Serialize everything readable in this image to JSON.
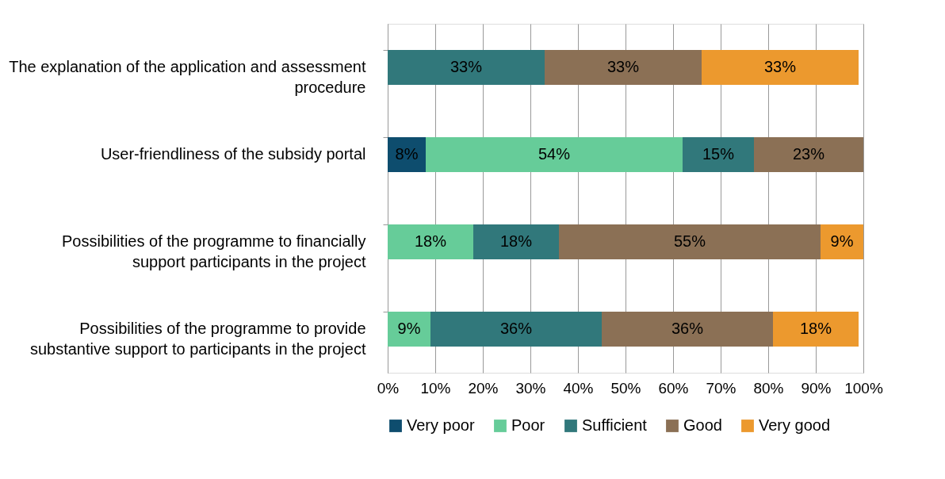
{
  "chart_data": {
    "type": "bar",
    "orientation": "horizontal",
    "stacked": true,
    "categories": [
      "The explanation of the application and assessment procedure",
      "User-friendliness of the subsidy portal",
      "Possibilities of the programme to financially support participants in the project",
      "Possibilities of the programme to provide substantive support to participants in the project"
    ],
    "series": [
      {
        "name": "Very poor",
        "color": "#0e4d6e",
        "values": [
          null,
          8,
          null,
          null
        ],
        "value_labels": [
          null,
          "8%",
          null,
          null
        ]
      },
      {
        "name": "Poor",
        "color": "#66cc99",
        "values": [
          null,
          54,
          18,
          9
        ],
        "value_labels": [
          null,
          "54%",
          "18%",
          "9%"
        ]
      },
      {
        "name": "Sufficient",
        "color": "#31787b",
        "values": [
          33,
          15,
          18,
          36
        ],
        "value_labels": [
          "33%",
          "15%",
          "18%",
          "36%"
        ]
      },
      {
        "name": "Good",
        "color": "#8b7055",
        "values": [
          33,
          23,
          55,
          36
        ],
        "value_labels": [
          "33%",
          "23%",
          "55%",
          "36%"
        ]
      },
      {
        "name": "Very good",
        "color": "#ec992e",
        "values": [
          33,
          null,
          9,
          18
        ],
        "value_labels": [
          "33%",
          null,
          "9%",
          "18%"
        ]
      }
    ],
    "xlim": [
      0,
      100
    ],
    "xticks": [
      {
        "value": 0,
        "label": "0%"
      },
      {
        "value": 10,
        "label": "10%"
      },
      {
        "value": 20,
        "label": "20%"
      },
      {
        "value": 30,
        "label": "30%"
      },
      {
        "value": 40,
        "label": "40%"
      },
      {
        "value": 50,
        "label": "50%"
      },
      {
        "value": 60,
        "label": "60%"
      },
      {
        "value": 70,
        "label": "70%"
      },
      {
        "value": 80,
        "label": "80%"
      },
      {
        "value": 90,
        "label": "90%"
      },
      {
        "value": 100,
        "label": "100%"
      }
    ],
    "grid": "x",
    "legend": "bottom"
  }
}
